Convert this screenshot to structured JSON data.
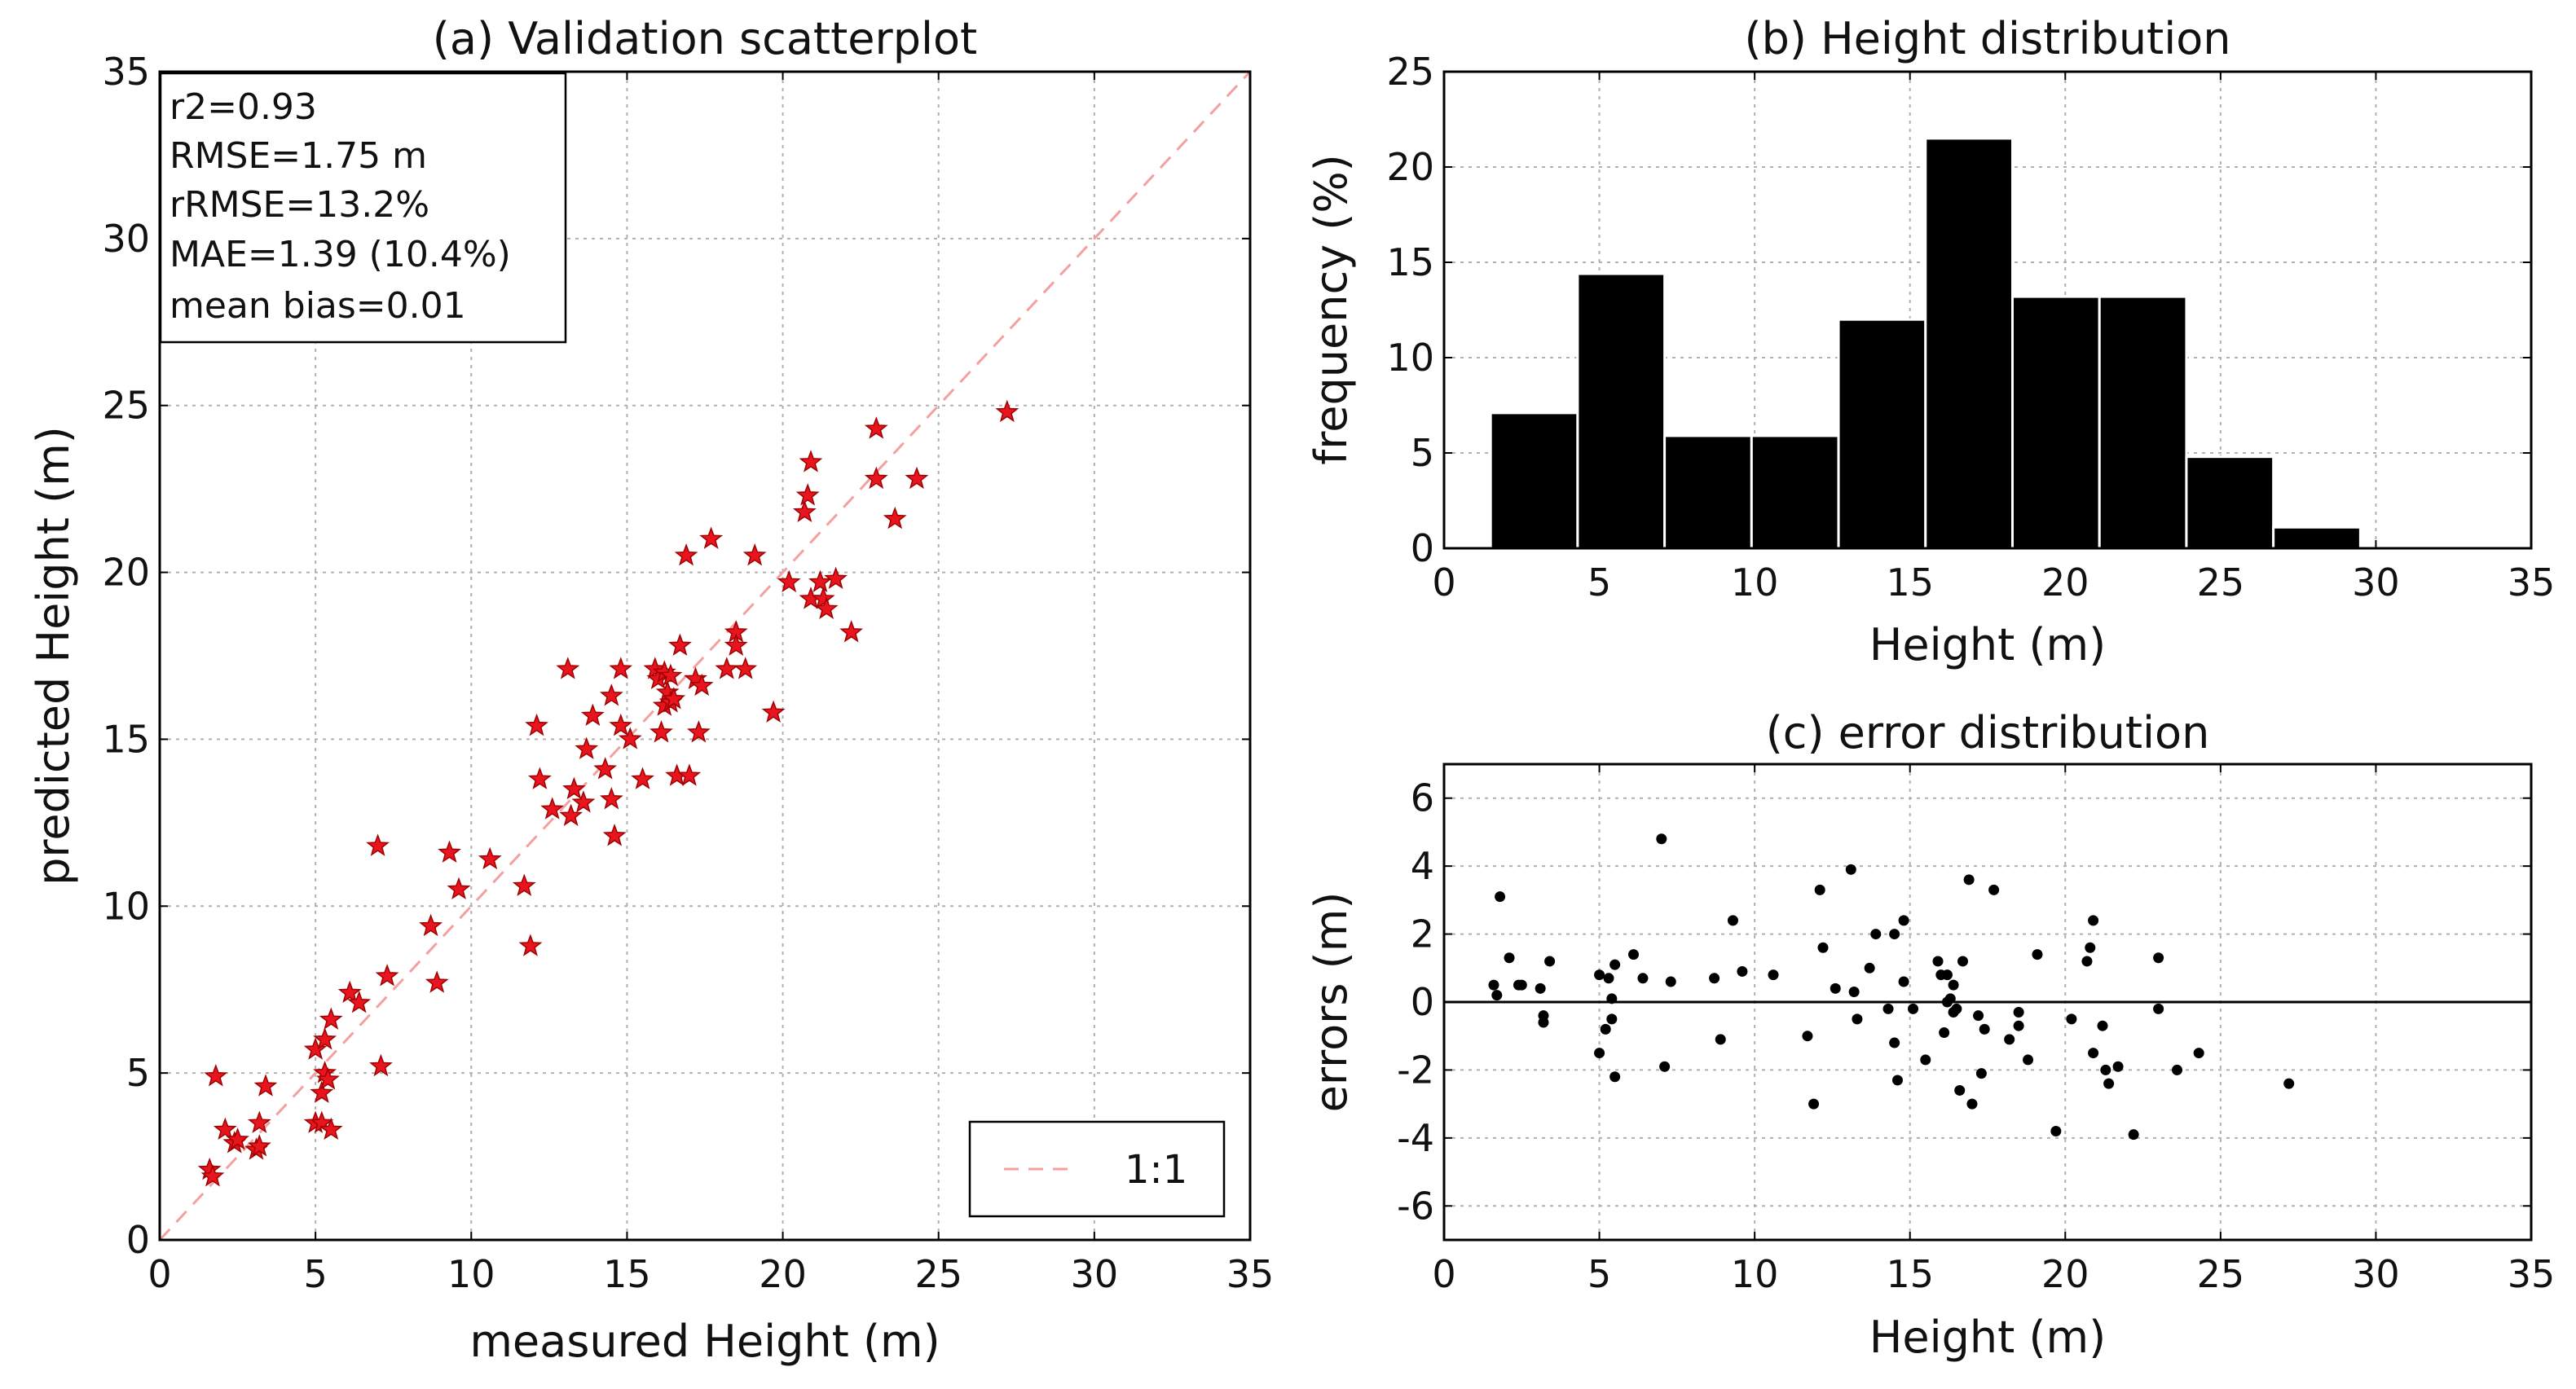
{
  "chart_data": [
    {
      "id": "a",
      "type": "scatter",
      "title": "(a) Validation scatterplot",
      "xlabel": "measured Height (m)",
      "ylabel": "predicted Height (m)",
      "xlim": [
        0,
        35
      ],
      "ylim": [
        0,
        35
      ],
      "xticks": [
        0,
        5,
        10,
        15,
        20,
        25,
        30,
        35
      ],
      "yticks": [
        0,
        5,
        10,
        15,
        20,
        25,
        30,
        35
      ],
      "grid": true,
      "marker": "star",
      "marker_color": "#e8141e",
      "stats": [
        "r2=0.93",
        "RMSE=1.75 m",
        "rRMSE=13.2%",
        "MAE=1.39 (10.4%)",
        "mean bias=0.01"
      ],
      "legend": {
        "position": "bottom-right",
        "entries": [
          {
            "label": "1:1",
            "style": "dashed",
            "color": "#f4a0a0"
          }
        ]
      },
      "points": [
        [
          1.6,
          2.1
        ],
        [
          1.7,
          1.9
        ],
        [
          1.8,
          4.9
        ],
        [
          2.1,
          3.3
        ],
        [
          2.4,
          2.9
        ],
        [
          2.5,
          3.0
        ],
        [
          3.1,
          2.7
        ],
        [
          3.2,
          3.5
        ],
        [
          3.2,
          2.8
        ],
        [
          3.4,
          4.6
        ],
        [
          5.0,
          5.7
        ],
        [
          5.0,
          3.5
        ],
        [
          5.2,
          4.4
        ],
        [
          5.2,
          3.5
        ],
        [
          5.3,
          6.0
        ],
        [
          5.3,
          5.0
        ],
        [
          5.4,
          4.8
        ],
        [
          5.5,
          3.3
        ],
        [
          5.5,
          6.6
        ],
        [
          6.1,
          7.4
        ],
        [
          6.4,
          7.1
        ],
        [
          7.0,
          11.8
        ],
        [
          7.1,
          5.2
        ],
        [
          7.3,
          7.9
        ],
        [
          8.7,
          9.4
        ],
        [
          8.9,
          7.7
        ],
        [
          9.3,
          11.6
        ],
        [
          9.6,
          10.5
        ],
        [
          10.6,
          11.4
        ],
        [
          11.7,
          10.6
        ],
        [
          11.9,
          8.8
        ],
        [
          12.1,
          15.4
        ],
        [
          12.2,
          13.8
        ],
        [
          12.6,
          12.9
        ],
        [
          13.1,
          17.1
        ],
        [
          13.2,
          12.7
        ],
        [
          13.3,
          13.5
        ],
        [
          13.6,
          13.1
        ],
        [
          13.7,
          14.7
        ],
        [
          13.9,
          15.7
        ],
        [
          14.3,
          14.1
        ],
        [
          14.5,
          16.3
        ],
        [
          14.5,
          13.2
        ],
        [
          14.6,
          12.1
        ],
        [
          14.8,
          17.1
        ],
        [
          14.8,
          15.4
        ],
        [
          15.1,
          15.0
        ],
        [
          15.5,
          13.8
        ],
        [
          15.9,
          17.1
        ],
        [
          16.0,
          16.8
        ],
        [
          16.1,
          15.2
        ],
        [
          16.2,
          16.0
        ],
        [
          16.2,
          17.0
        ],
        [
          16.3,
          16.4
        ],
        [
          16.4,
          16.1
        ],
        [
          16.4,
          16.9
        ],
        [
          16.5,
          16.2
        ],
        [
          16.6,
          13.9
        ],
        [
          16.7,
          17.8
        ],
        [
          16.9,
          20.5
        ],
        [
          17.0,
          13.9
        ],
        [
          17.2,
          16.8
        ],
        [
          17.3,
          15.2
        ],
        [
          17.4,
          16.6
        ],
        [
          17.7,
          21.0
        ],
        [
          18.2,
          17.1
        ],
        [
          18.5,
          18.2
        ],
        [
          18.5,
          17.8
        ],
        [
          18.8,
          17.1
        ],
        [
          19.1,
          20.5
        ],
        [
          19.7,
          15.8
        ],
        [
          20.2,
          19.7
        ],
        [
          20.7,
          21.8
        ],
        [
          20.8,
          22.3
        ],
        [
          20.9,
          23.3
        ],
        [
          20.9,
          19.2
        ],
        [
          21.2,
          19.7
        ],
        [
          21.3,
          19.2
        ],
        [
          21.4,
          18.9
        ],
        [
          21.7,
          19.8
        ],
        [
          22.2,
          18.2
        ],
        [
          23.0,
          24.3
        ],
        [
          23.0,
          22.8
        ],
        [
          23.6,
          21.6
        ],
        [
          24.3,
          22.8
        ],
        [
          27.2,
          24.8
        ]
      ]
    },
    {
      "id": "b",
      "type": "bar",
      "title": "(b) Height distribution",
      "xlabel": "Height (m)",
      "ylabel": "frequency (%)",
      "xlim": [
        0,
        35
      ],
      "ylim": [
        0,
        25
      ],
      "xticks": [
        0,
        5,
        10,
        15,
        20,
        25,
        30,
        35
      ],
      "yticks": [
        0,
        5,
        10,
        15,
        20,
        25
      ],
      "grid": true,
      "bar_color": "#000000",
      "bin_edges": [
        1.5,
        4.3,
        7.1,
        9.9,
        12.7,
        15.5,
        18.3,
        21.1,
        23.9,
        26.7,
        29.5
      ],
      "values": [
        7.1,
        14.4,
        5.9,
        5.9,
        12.0,
        21.5,
        13.2,
        13.2,
        4.8,
        1.1
      ]
    },
    {
      "id": "c",
      "type": "scatter",
      "title": "(c) error distribution",
      "xlabel": "Height (m)",
      "ylabel": "errors (m)",
      "xlim": [
        0,
        35
      ],
      "ylim": [
        -7,
        7
      ],
      "xticks": [
        0,
        5,
        10,
        15,
        20,
        25,
        30,
        35
      ],
      "yticks": [
        -6,
        -4,
        -2,
        0,
        2,
        4,
        6
      ],
      "grid": true,
      "marker": "dot",
      "marker_color": "#000000",
      "zero_line": true,
      "points": [
        [
          1.6,
          0.5
        ],
        [
          1.7,
          0.2
        ],
        [
          1.8,
          3.1
        ],
        [
          2.1,
          1.3
        ],
        [
          2.4,
          0.5
        ],
        [
          2.5,
          0.5
        ],
        [
          3.1,
          0.4
        ],
        [
          3.2,
          -0.4
        ],
        [
          3.2,
          -0.6
        ],
        [
          3.4,
          1.2
        ],
        [
          5.0,
          0.8
        ],
        [
          5.0,
          -1.5
        ],
        [
          5.2,
          -0.8
        ],
        [
          5.3,
          0.7
        ],
        [
          5.4,
          0.1
        ],
        [
          5.4,
          -0.5
        ],
        [
          5.5,
          1.1
        ],
        [
          5.5,
          -2.2
        ],
        [
          6.1,
          1.4
        ],
        [
          6.4,
          0.7
        ],
        [
          7.0,
          4.8
        ],
        [
          7.1,
          -1.9
        ],
        [
          7.3,
          0.6
        ],
        [
          8.7,
          0.7
        ],
        [
          8.9,
          -1.1
        ],
        [
          9.3,
          2.4
        ],
        [
          9.6,
          0.9
        ],
        [
          10.6,
          0.8
        ],
        [
          11.7,
          -1.0
        ],
        [
          11.9,
          -3.0
        ],
        [
          12.1,
          3.3
        ],
        [
          12.2,
          1.6
        ],
        [
          12.6,
          0.4
        ],
        [
          13.1,
          3.9
        ],
        [
          13.2,
          0.3
        ],
        [
          13.3,
          -0.5
        ],
        [
          13.7,
          1.0
        ],
        [
          13.9,
          2.0
        ],
        [
          14.3,
          -0.2
        ],
        [
          14.5,
          2.0
        ],
        [
          14.5,
          -1.2
        ],
        [
          14.6,
          -2.3
        ],
        [
          14.8,
          2.4
        ],
        [
          14.8,
          0.6
        ],
        [
          15.1,
          -0.2
        ],
        [
          15.5,
          -1.7
        ],
        [
          15.9,
          1.2
        ],
        [
          16.0,
          0.8
        ],
        [
          16.1,
          -0.9
        ],
        [
          16.2,
          0.8
        ],
        [
          16.2,
          0.0
        ],
        [
          16.3,
          0.1
        ],
        [
          16.4,
          -0.3
        ],
        [
          16.4,
          0.5
        ],
        [
          16.5,
          -0.2
        ],
        [
          16.6,
          -2.6
        ],
        [
          16.7,
          1.2
        ],
        [
          16.9,
          3.6
        ],
        [
          17.0,
          -3.0
        ],
        [
          17.2,
          -0.4
        ],
        [
          17.3,
          -2.1
        ],
        [
          17.4,
          -0.8
        ],
        [
          17.7,
          3.3
        ],
        [
          18.2,
          -1.1
        ],
        [
          18.5,
          -0.3
        ],
        [
          18.5,
          -0.7
        ],
        [
          18.8,
          -1.7
        ],
        [
          19.1,
          1.4
        ],
        [
          19.7,
          -3.8
        ],
        [
          20.2,
          -0.5
        ],
        [
          20.7,
          1.2
        ],
        [
          20.8,
          1.6
        ],
        [
          20.9,
          2.4
        ],
        [
          20.9,
          -1.5
        ],
        [
          21.2,
          -0.7
        ],
        [
          21.3,
          -2.0
        ],
        [
          21.4,
          -2.4
        ],
        [
          21.7,
          -1.9
        ],
        [
          22.2,
          -3.9
        ],
        [
          23.0,
          1.3
        ],
        [
          23.0,
          -0.2
        ],
        [
          23.6,
          -2.0
        ],
        [
          24.3,
          -1.5
        ],
        [
          27.2,
          -2.4
        ]
      ]
    }
  ]
}
